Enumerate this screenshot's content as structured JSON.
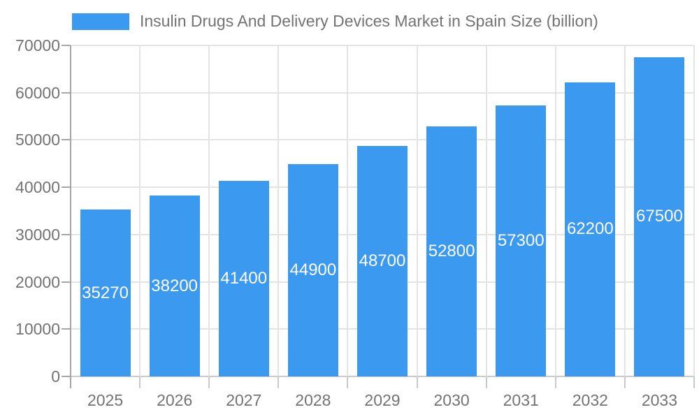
{
  "legend": {
    "label": "Insulin Drugs And Delivery Devices Market in Spain Size (billion)"
  },
  "chart_data": {
    "type": "bar",
    "title": "Insulin Drugs And Delivery Devices Market in Spain Size (billion)",
    "categories": [
      "2025",
      "2026",
      "2027",
      "2028",
      "2029",
      "2030",
      "2031",
      "2032",
      "2033"
    ],
    "values": [
      35270,
      38200,
      41400,
      44900,
      48700,
      52800,
      57300,
      62200,
      67500
    ],
    "bar_labels": [
      "35270",
      "38200",
      "41400",
      "44900",
      "48700",
      "52800",
      "57300",
      "62200",
      "67500"
    ],
    "series_name": "Insulin Drugs And Delivery Devices Market in Spain Size (billion)",
    "xlabel": "",
    "ylabel": "",
    "ylim": [
      0,
      70000
    ],
    "yticks": [
      0,
      10000,
      20000,
      30000,
      40000,
      50000,
      60000,
      70000
    ],
    "ytick_labels": [
      "0",
      "10000",
      "20000",
      "30000",
      "40000",
      "50000",
      "60000",
      "70000"
    ],
    "grid": true,
    "legend_position": "top-left",
    "colors": {
      "bar": "#3b99f0",
      "grid": "#e3e3e3",
      "axis": "#a6a6a6",
      "tick": "#c9c9c9",
      "text": "#737373",
      "bar_label": "#ffffff",
      "background": "#ffffff"
    }
  }
}
